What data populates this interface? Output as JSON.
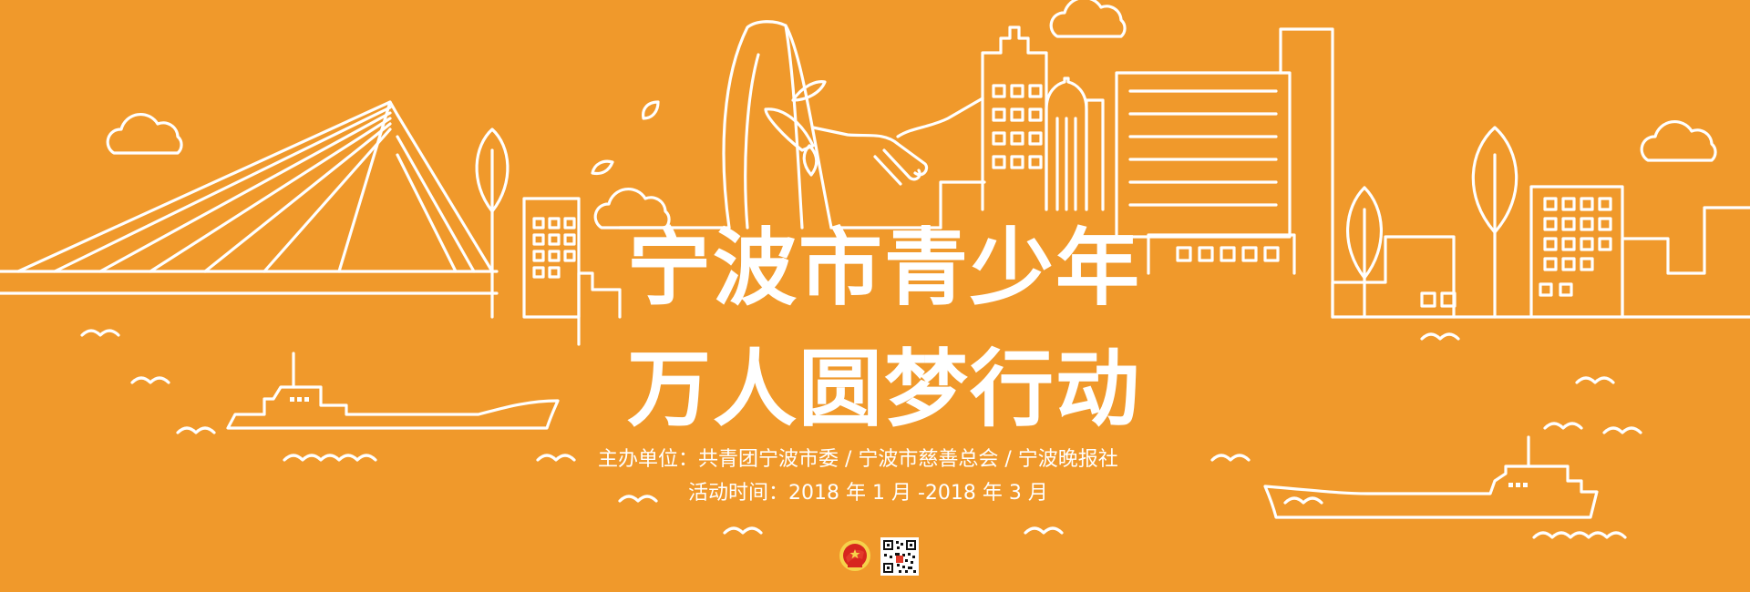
{
  "banner": {
    "title_line_1": "宁波市青少年",
    "title_line_2": "万人圆梦行动",
    "organizers": "主办单位：共青团宁波市委 / 宁波市慈善总会 / 宁波晚报社",
    "period": "活动时间：2018 年 1 月 -2018 年 3 月",
    "background_color": "#F0992B",
    "line_color": "#FFFFFF"
  },
  "icons": {
    "logo": "communist-youth-league-emblem-icon",
    "qr": "qr-code-icon"
  }
}
